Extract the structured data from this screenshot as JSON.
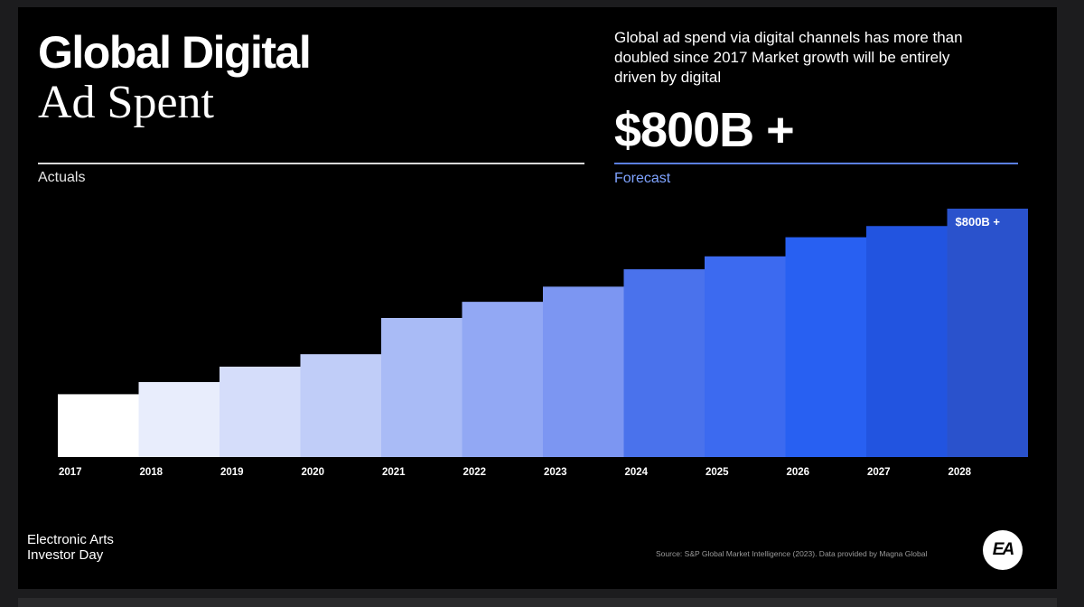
{
  "title": {
    "line1": "Global Digital",
    "line2": "Ad Spent"
  },
  "description": "Global ad spend via digital channels has more than doubled since 2017 Market growth will be entirely driven by digital",
  "headline": "$800B +",
  "sections": {
    "actuals": "Actuals",
    "forecast": "Forecast"
  },
  "footer": {
    "brand_line1": "Electronic Arts",
    "brand_line2": "Investor Day",
    "source": "Source: S&P Global Market Intelligence (2023). Data provided by Magna Global",
    "logo_text": "EA"
  },
  "colors": {
    "background": "#000000",
    "forecast_accent": "#7fa3ff"
  },
  "chart_data": {
    "type": "bar",
    "categories": [
      "2017",
      "2018",
      "2019",
      "2020",
      "2021",
      "2022",
      "2023",
      "2024",
      "2025",
      "2026",
      "2027",
      "2028"
    ],
    "values": [
      253,
      302,
      364,
      414,
      560,
      625,
      686,
      756,
      808,
      885,
      930,
      1000
    ],
    "value_scale": "relative bar height (tallest = 1000); no y-axis printed",
    "bar_colors": [
      "#ffffff",
      "#e8edfc",
      "#d5ddfa",
      "#c0cdf8",
      "#a9bbf6",
      "#92a8f4",
      "#7c96f2",
      "#4a72ec",
      "#3c6af0",
      "#2860f2",
      "#2254e0",
      "#2a52cc"
    ],
    "data_labels": [
      {
        "category": "2028",
        "text": "$800B +"
      }
    ],
    "title": "",
    "xlabel": "",
    "ylabel": ""
  }
}
